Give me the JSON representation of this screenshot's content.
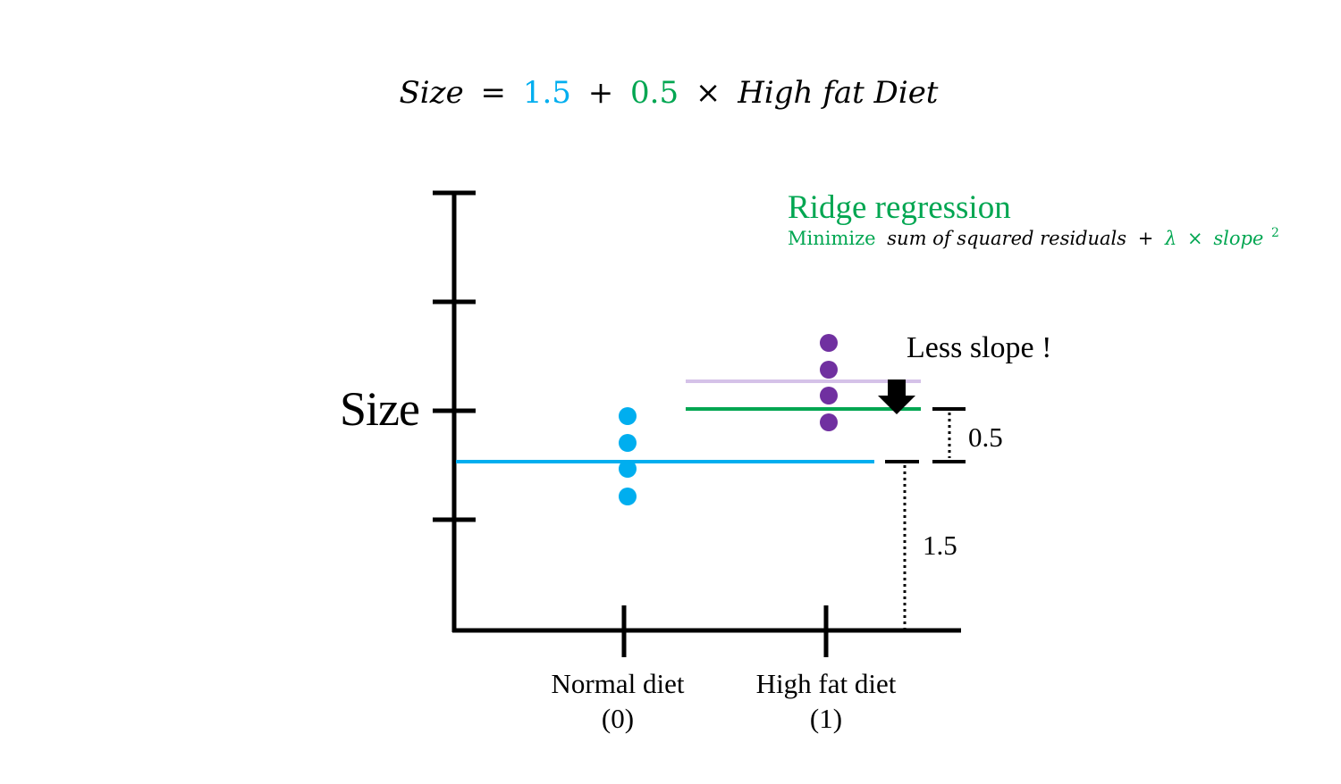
{
  "equation": {
    "lhs": "Size",
    "eq": "=",
    "intercept": "1.5",
    "plus": "+",
    "slope": "0.5",
    "times": "×",
    "variable": "High fat Diet"
  },
  "ridge": {
    "title": "Ridge regression",
    "minimize": "Minimize",
    "ssr": "sum of squared residuals",
    "plus": "+",
    "lambda": "λ",
    "times": "×",
    "slope": "slope",
    "sup": "2"
  },
  "axis": {
    "y_label": "Size",
    "categories": [
      {
        "name": "Normal diet",
        "code": "(0)"
      },
      {
        "name": "High fat diet",
        "code": "(1)"
      }
    ]
  },
  "annotations": {
    "less_slope": "Less slope !",
    "slope_value": "0.5",
    "intercept_value": "1.5"
  },
  "colors": {
    "intercept": "#00aeef",
    "slope": "#00a651",
    "high_fat_points": "#7030a0",
    "ols_line": "#d5c2e8",
    "axis": "#000000"
  },
  "icons": {
    "arrow": "down-arrow-icon"
  }
}
